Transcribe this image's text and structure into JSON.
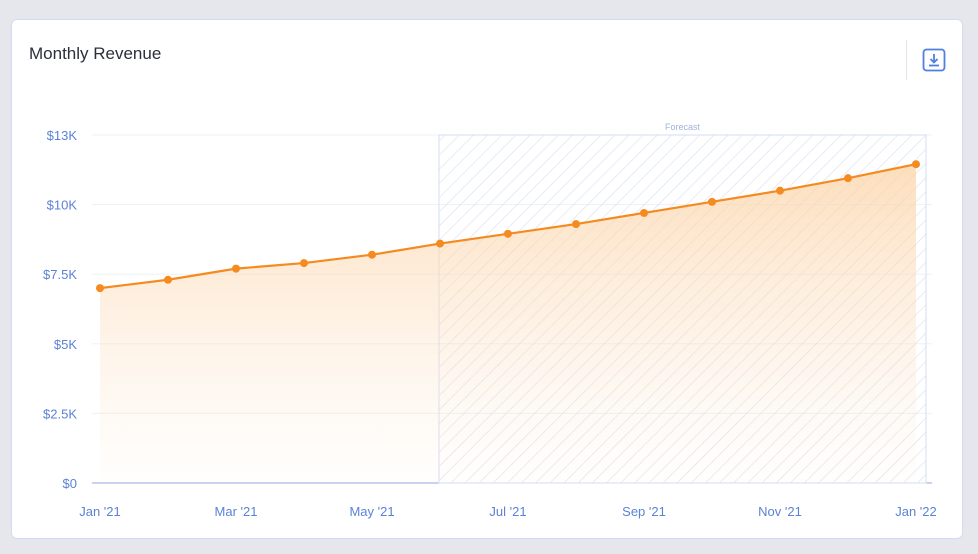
{
  "card": {
    "title": "Monthly Revenue",
    "download_icon": "download-icon"
  },
  "colors": {
    "line": "#f58a1f",
    "axis_text": "#5b82d6",
    "grid": "#eef1f6",
    "forecast_hatch": "#d5def0"
  },
  "chart_data": {
    "type": "area",
    "title": "Monthly Revenue",
    "x": [
      "Jan '21",
      "Feb '21",
      "Mar '21",
      "Apr '21",
      "May '21",
      "Jun '21",
      "Jul '21",
      "Aug '21",
      "Sep '21",
      "Oct '21",
      "Nov '21",
      "Dec '21",
      "Jan '22"
    ],
    "x_tick_labels": [
      "Jan '21",
      "Mar '21",
      "May '21",
      "Jul '21",
      "Sep '21",
      "Nov '21",
      "Jan '22"
    ],
    "values": [
      7000,
      7300,
      7700,
      7900,
      8200,
      8600,
      8950,
      9300,
      9700,
      10100,
      10500,
      10950,
      11450
    ],
    "y_ticks": [
      {
        "value": 0,
        "label": "$0"
      },
      {
        "value": 2500,
        "label": "$2.5K"
      },
      {
        "value": 5000,
        "label": "$5K"
      },
      {
        "value": 7500,
        "label": "$7.5K"
      },
      {
        "value": 10000,
        "label": "$10K"
      },
      {
        "value": 12500,
        "label": "$13K"
      }
    ],
    "ylim": [
      0,
      12500
    ],
    "forecast": {
      "label": "Forecast",
      "start": "Jun '21",
      "end": "Jan '22"
    },
    "grid": true,
    "legend": "none"
  }
}
